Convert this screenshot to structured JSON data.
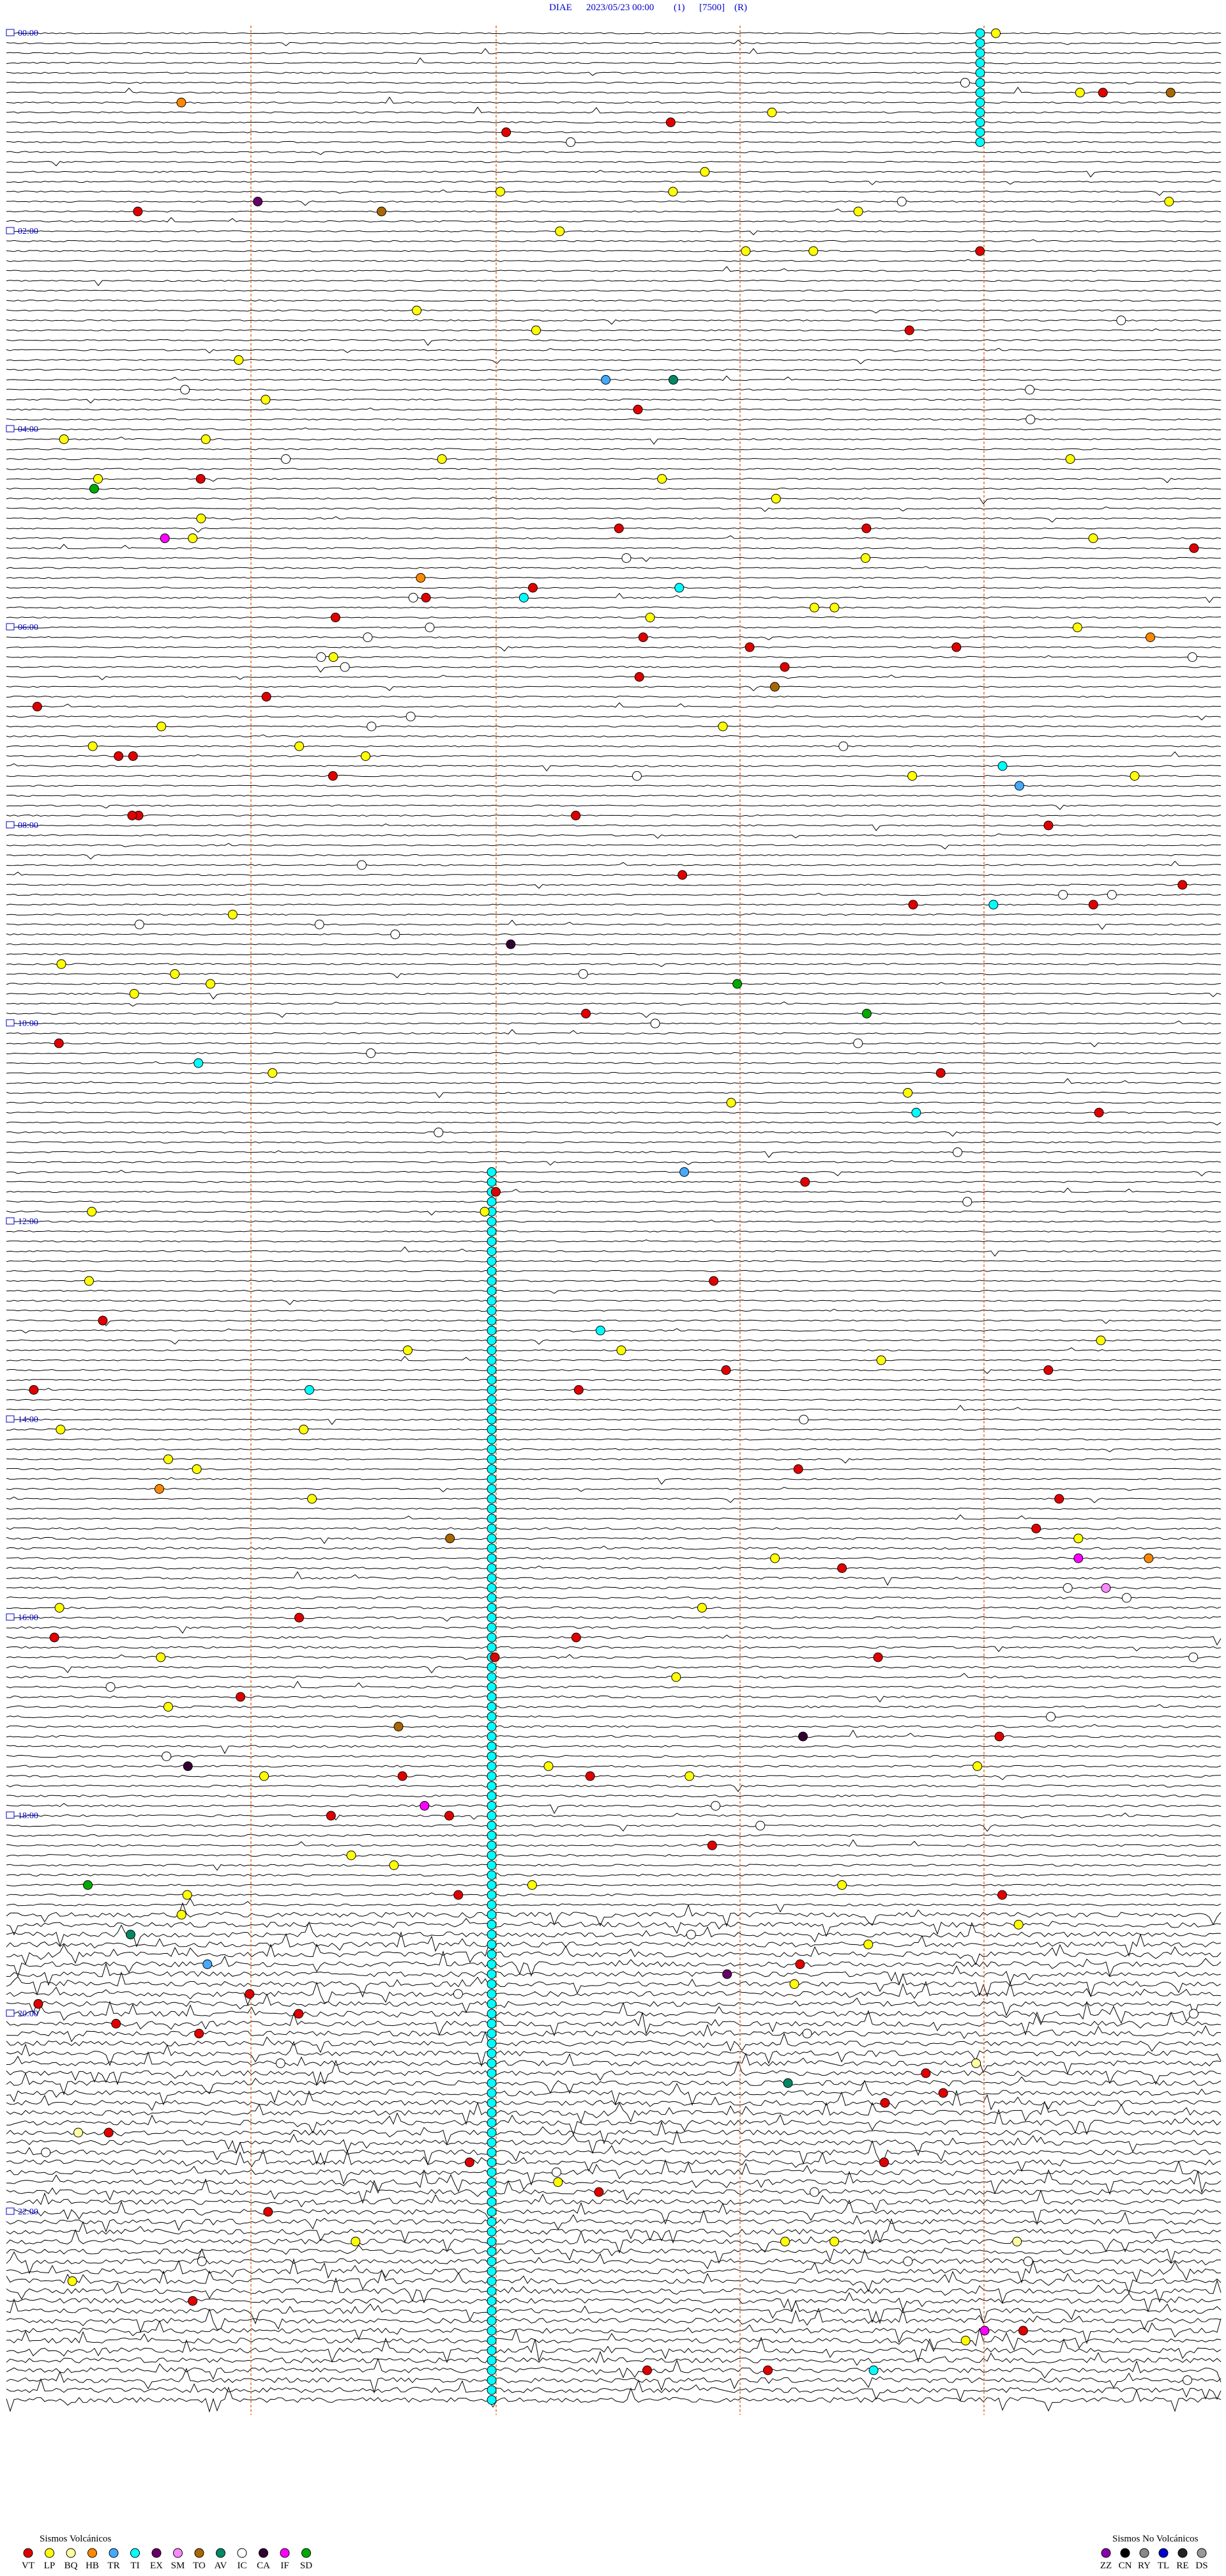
{
  "header": {
    "station": "DIAE",
    "datetime": "2023/05/23 00:00",
    "channel": "(1)",
    "scale": "[7500]",
    "mode": "(R)"
  },
  "time_labels": [
    "00:00",
    "02:00",
    "04:00",
    "06:00",
    "08:00",
    "10:00",
    "12:00",
    "14:00",
    "16:00",
    "18:00",
    "20:00",
    "22:00"
  ],
  "legend": {
    "volcanic": {
      "title": "Sismos Volcánicos",
      "items": [
        {
          "code": "VT",
          "color": "#e00000"
        },
        {
          "code": "LP",
          "color": "#ffff00"
        },
        {
          "code": "BQ",
          "color": "#ffffa0"
        },
        {
          "code": "HB",
          "color": "#ff8800"
        },
        {
          "code": "TR",
          "color": "#44aaff"
        },
        {
          "code": "TI",
          "color": "#00ffff"
        },
        {
          "code": "EX",
          "color": "#660066"
        },
        {
          "code": "SM",
          "color": "#ff88ff"
        },
        {
          "code": "TO",
          "color": "#aa6600"
        },
        {
          "code": "AV",
          "color": "#008866"
        },
        {
          "code": "IC",
          "color": "#ffffff"
        },
        {
          "code": "CA",
          "color": "#330033"
        },
        {
          "code": "IF",
          "color": "#ff00ff"
        },
        {
          "code": "SD",
          "color": "#00aa00"
        }
      ]
    },
    "non_volcanic": {
      "title": "Sismos No Volcánicos",
      "items": [
        {
          "code": "ZZ",
          "color": "#8800aa"
        },
        {
          "code": "CN",
          "color": "#000000"
        },
        {
          "code": "RY",
          "color": "#888888"
        },
        {
          "code": "TL",
          "color": "#0000cc"
        },
        {
          "code": "RE",
          "color": "#222222"
        },
        {
          "code": "DS",
          "color": "#999999"
        }
      ]
    }
  }
}
